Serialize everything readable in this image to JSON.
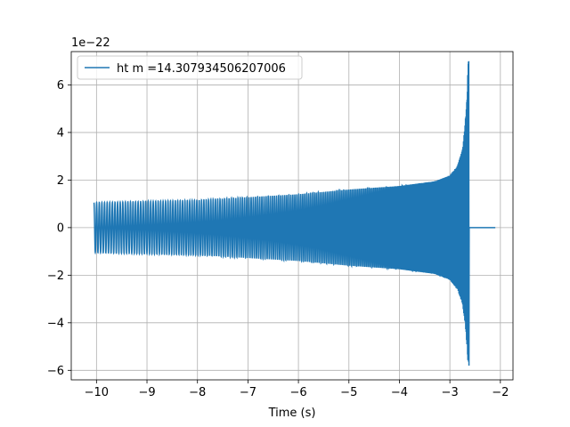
{
  "chart_data": {
    "type": "line",
    "title": "",
    "xlabel": "Time (s)",
    "ylabel": "",
    "offset_label": "1e−22",
    "xlim": [
      -10.5,
      -1.75
    ],
    "ylim": [
      -6.4,
      7.4
    ],
    "xticks": [
      -10,
      -9,
      -8,
      -7,
      -6,
      -5,
      -4,
      -3,
      -2
    ],
    "xtick_labels": [
      "−10",
      "−9",
      "−8",
      "−7",
      "−6",
      "−5",
      "−4",
      "−3",
      "−2"
    ],
    "yticks": [
      -6,
      -4,
      -2,
      0,
      2,
      4,
      6
    ],
    "ytick_labels": [
      "−6",
      "−4",
      "−2",
      "0",
      "2",
      "4",
      "6"
    ],
    "grid": true,
    "legend_position": "top-left",
    "series": [
      {
        "name": "ht m =14.307934506207006",
        "color": "#1f77b4",
        "signal": {
          "t_start": -10.05,
          "t_merger": -2.63,
          "t_end": -2.1,
          "initial_amplitude": 1.05,
          "peak_max": 7.0,
          "peak_min": -5.8
        },
        "envelope_upper": [
          [
            -10.05,
            1.05
          ],
          [
            -8,
            1.15
          ],
          [
            -6,
            1.4
          ],
          [
            -5,
            1.6
          ],
          [
            -4,
            1.75
          ],
          [
            -3.3,
            1.95
          ],
          [
            -3.0,
            2.2
          ],
          [
            -2.85,
            2.6
          ],
          [
            -2.75,
            3.3
          ],
          [
            -2.7,
            4.3
          ],
          [
            -2.66,
            5.6
          ],
          [
            -2.64,
            7.0
          ]
        ],
        "envelope_lower": [
          [
            -10.05,
            -1.05
          ],
          [
            -8,
            -1.15
          ],
          [
            -6,
            -1.4
          ],
          [
            -5,
            -1.6
          ],
          [
            -4,
            -1.75
          ],
          [
            -3.3,
            -1.95
          ],
          [
            -3.0,
            -2.2
          ],
          [
            -2.85,
            -2.6
          ],
          [
            -2.75,
            -3.2
          ],
          [
            -2.7,
            -4.0
          ],
          [
            -2.66,
            -5.0
          ],
          [
            -2.64,
            -5.8
          ]
        ]
      }
    ]
  }
}
